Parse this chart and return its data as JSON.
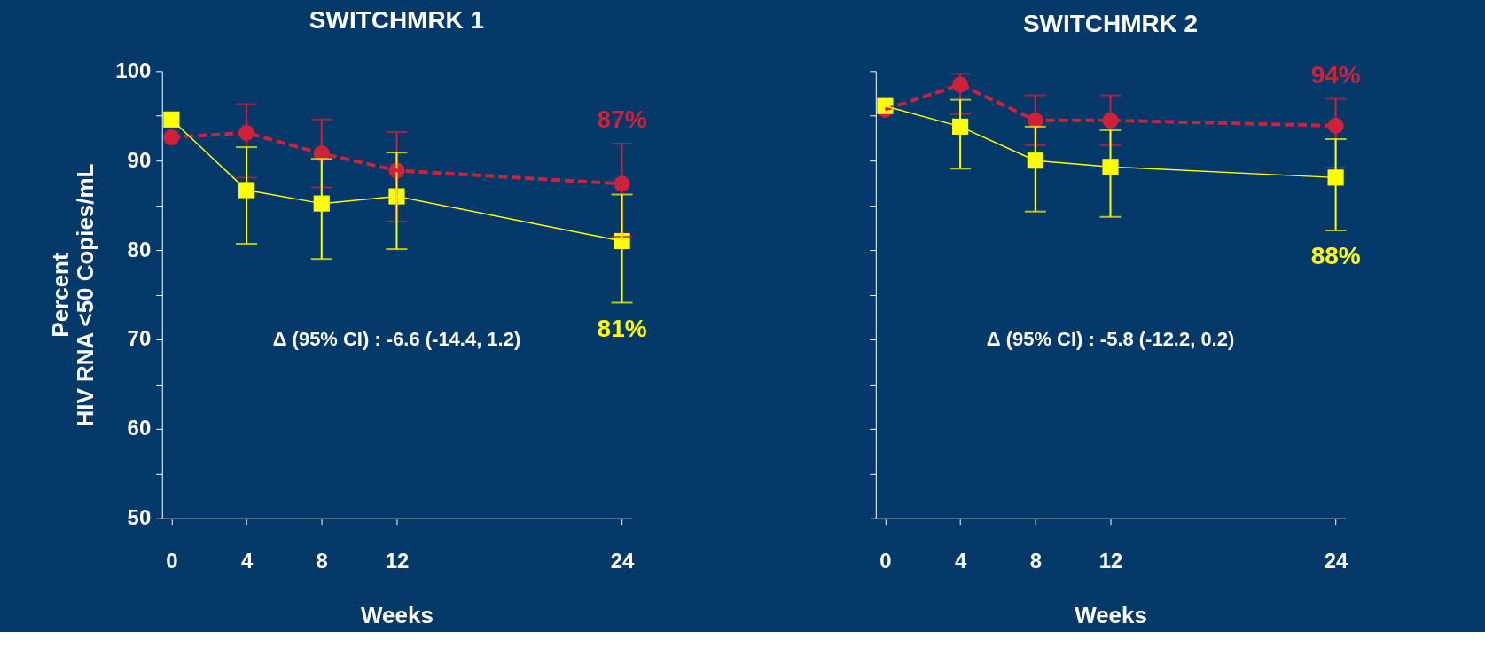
{
  "chart_data": [
    {
      "type": "line",
      "title": "SWITCHMRK 1",
      "xlabel": "Weeks",
      "ylabel": "Percent\nHIV RNA <50 Copies/mL",
      "x": [
        0,
        4,
        8,
        12,
        24
      ],
      "xlim": [
        -0.5,
        24.5
      ],
      "xticks": [
        0,
        4,
        8,
        12,
        24
      ],
      "ylim": [
        50,
        100
      ],
      "yticks": [
        50,
        {
          "value": 55,
          "label": null
        },
        60,
        {
          "value": 65,
          "label": null
        },
        70,
        {
          "value": 75,
          "label": null
        },
        80,
        {
          "value": 85,
          "label": null
        },
        90,
        {
          "value": 95,
          "label": null
        },
        100
      ],
      "grid": false,
      "series": [
        {
          "color": "#d0213a",
          "marker": "circle",
          "line_style": "dashed",
          "values": [
            92.6,
            93.1,
            90.8,
            88.9,
            87.4
          ],
          "errors": [
            null,
            [
              88.1,
              96.3
            ],
            [
              87.0,
              94.6
            ],
            [
              83.2,
              93.2
            ],
            [
              81.5,
              91.9
            ]
          ],
          "value_labels": [
            null,
            null,
            null,
            null,
            "87%"
          ]
        },
        {
          "color": "#ffff00",
          "marker": "square",
          "line_style": "solid",
          "values": [
            94.6,
            86.7,
            85.2,
            86.0,
            81.0
          ],
          "errors": [
            null,
            [
              80.7,
              91.5
            ],
            [
              79.0,
              90.2
            ],
            [
              80.1,
              90.9
            ],
            [
              74.1,
              86.2
            ]
          ],
          "value_labels": [
            null,
            null,
            null,
            null,
            "81%"
          ]
        }
      ],
      "annotations": [
        "Δ (95% CI) :  -6.6 (-14.4, 1.2)"
      ]
    },
    {
      "type": "line",
      "title": "SWITCHMRK 2",
      "xlabel": "Weeks",
      "x": [
        0,
        4,
        8,
        12,
        24
      ],
      "xlim": [
        -0.5,
        24.5
      ],
      "xticks": [
        0,
        4,
        8,
        12,
        24
      ],
      "ylim": [
        50,
        100
      ],
      "yticks": [
        {
          "value": 50,
          "label": null
        },
        {
          "value": 55,
          "label": null
        },
        {
          "value": 60,
          "label": null
        },
        {
          "value": 65,
          "label": null
        },
        {
          "value": 70,
          "label": null
        },
        {
          "value": 75,
          "label": null
        },
        {
          "value": 80,
          "label": null
        },
        {
          "value": 85,
          "label": null
        },
        {
          "value": 90,
          "label": null
        },
        {
          "value": 95,
          "label": null
        },
        {
          "value": 100,
          "label": null
        }
      ],
      "tick_labels": "x",
      "grid": false,
      "series": [
        {
          "color": "#d0213a",
          "marker": "circle",
          "line_style": "dashed",
          "values": [
            95.7,
            98.5,
            94.5,
            94.5,
            93.9
          ],
          "errors": [
            null,
            [
              95.2,
              99.7
            ],
            [
              91.7,
              97.3
            ],
            [
              91.7,
              97.3
            ],
            [
              89.2,
              96.9
            ]
          ],
          "value_labels": [
            null,
            null,
            null,
            null,
            "94%"
          ]
        },
        {
          "color": "#ffff00",
          "marker": "square",
          "line_style": "solid",
          "values": [
            96.1,
            93.8,
            90.0,
            89.3,
            88.1
          ],
          "errors": [
            null,
            [
              89.1,
              96.8
            ],
            [
              84.3,
              93.8
            ],
            [
              83.7,
              93.4
            ],
            [
              82.2,
              92.4
            ]
          ],
          "value_labels": [
            null,
            null,
            null,
            null,
            "88%"
          ]
        }
      ],
      "annotations": [
        "Δ  (95% CI) :  -5.8 (-12.2, 0.2)"
      ]
    }
  ]
}
